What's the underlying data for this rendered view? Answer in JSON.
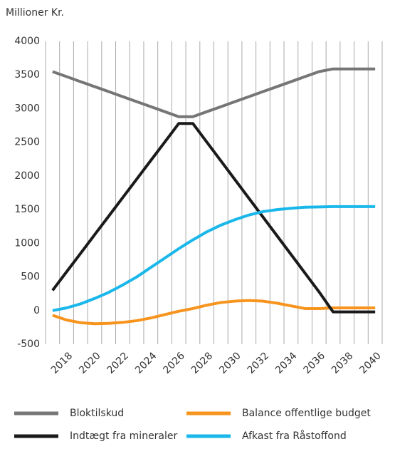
{
  "chart_data": {
    "type": "line",
    "title": "Millioner Kr.",
    "categories": [
      null,
      "2018",
      null,
      "2020",
      null,
      "2022",
      null,
      "2024",
      null,
      "2026",
      null,
      "2028",
      null,
      "2030",
      null,
      "2032",
      null,
      "2034",
      null,
      "2036",
      null,
      "2038",
      null,
      "2040"
    ],
    "series": [
      {
        "name": "Bloktilskud",
        "color": "#767676",
        "values": [
          3550,
          3476,
          3401,
          3327,
          3253,
          3178,
          3104,
          3030,
          2955,
          2880,
          2880,
          2955,
          3029,
          3104,
          3178,
          3253,
          3327,
          3401,
          3476,
          3550,
          3590,
          3590,
          3590,
          3590
        ]
      },
      {
        "name": "Balance offentlige budget",
        "color": "#f7941d",
        "values": [
          -70,
          -140,
          -180,
          -195,
          -190,
          -175,
          -150,
          -110,
          -60,
          -10,
          30,
          80,
          120,
          140,
          150,
          140,
          110,
          70,
          30,
          30,
          40,
          40,
          40,
          40
        ]
      },
      {
        "name": "Indtægt fra mineraler",
        "color": "#1a1a1a",
        "values": [
          300,
          576,
          851,
          1127,
          1402,
          1678,
          1953,
          2229,
          2504,
          2780,
          2780,
          2502,
          2224,
          1946,
          1668,
          1390,
          1112,
          834,
          556,
          278,
          -20,
          -20,
          -20,
          -20
        ]
      },
      {
        "name": "Afkast fra Råstoffond",
        "color": "#1ab7ea",
        "values": [
          0,
          40,
          100,
          180,
          270,
          380,
          500,
          640,
          780,
          920,
          1050,
          1170,
          1270,
          1350,
          1420,
          1470,
          1500,
          1520,
          1535,
          1540,
          1545,
          1545,
          1545,
          1545
        ]
      }
    ],
    "ylim": [
      -500,
      4000
    ],
    "yticks": [
      -500,
      0,
      500,
      1000,
      1500,
      2000,
      2500,
      3000,
      3500,
      4000
    ],
    "grid": true
  }
}
